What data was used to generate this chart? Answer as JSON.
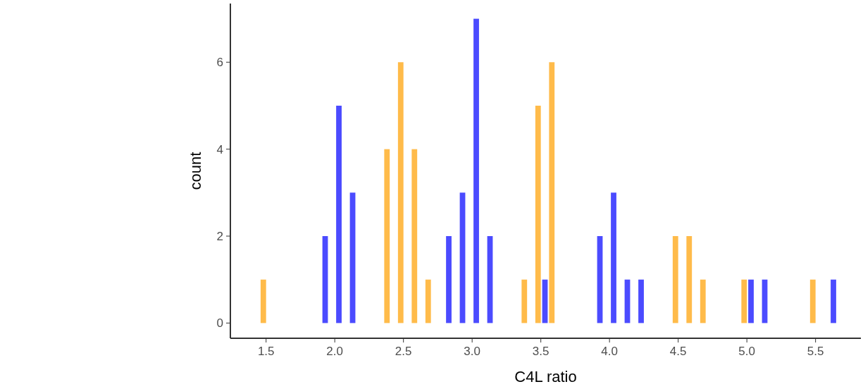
{
  "chart_data": {
    "type": "bar",
    "xlabel": "C4L ratio",
    "ylabel": "count",
    "xlim": [
      1.24,
      5.83
    ],
    "ylim": [
      -0.35,
      7.35
    ],
    "xticks": [
      {
        "value": 1.5,
        "label": "1.5"
      },
      {
        "value": 2,
        "label": "2.0"
      },
      {
        "value": 2.5,
        "label": "2.5"
      },
      {
        "value": 3,
        "label": "3.0"
      },
      {
        "value": 3.5,
        "label": "3.5"
      },
      {
        "value": 4,
        "label": "4.0"
      },
      {
        "value": 4.5,
        "label": "4.5"
      },
      {
        "value": 5,
        "label": "5.0"
      },
      {
        "value": 5.5,
        "label": "5.5"
      }
    ],
    "yticks": [
      0,
      2,
      4,
      6
    ],
    "grid": false,
    "legend": false,
    "series": [
      {
        "color": "#ffbb4a",
        "x": [
          1.48,
          2.38,
          2.48,
          2.58,
          2.68,
          3.38,
          3.48,
          3.58,
          4.48,
          4.58,
          4.68,
          4.98,
          5.48
        ],
        "values": [
          1,
          4,
          6,
          4,
          1,
          1,
          5,
          6,
          2,
          2,
          1,
          1,
          1
        ]
      },
      {
        "color": "#4b4bff",
        "x": [
          1.93,
          2.03,
          2.13,
          2.83,
          2.93,
          3.03,
          3.13,
          3.53,
          3.93,
          4.03,
          4.13,
          4.23,
          5.03,
          5.13,
          5.63
        ],
        "values": [
          2,
          5,
          3,
          2,
          3,
          7,
          2,
          1,
          2,
          3,
          1,
          1,
          1,
          1,
          1
        ]
      }
    ]
  }
}
